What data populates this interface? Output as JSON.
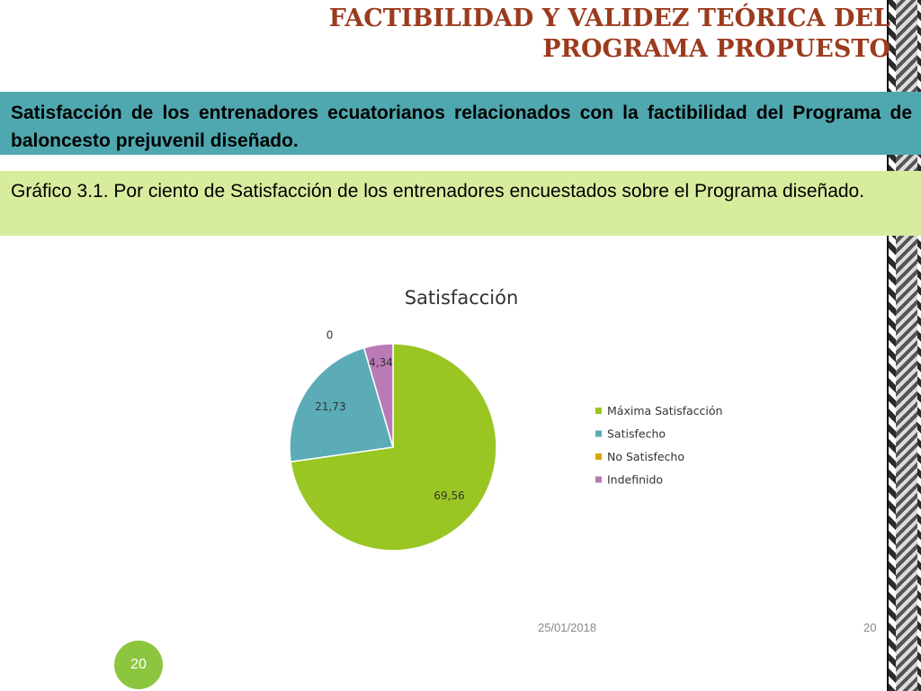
{
  "slide": {
    "title": "FACTIBILIDAD Y VALIDEZ TEÓRICA DEL PROGRAMA PROPUESTO",
    "highlight_text": "Satisfacción de los entrenadores ecuatorianos relacionados con la factibilidad del Programa de baloncesto prejuvenil diseñado.",
    "caption_text": "Gráfico 3.1. Por ciento de Satisfacción de los entrenadores encuestados sobre el Programa diseñado.",
    "footer_date": "25/01/2018",
    "footer_page": "20",
    "page_badge": "20"
  },
  "chart_data": {
    "type": "pie",
    "title": "Satisfacción",
    "legend_position": "right",
    "start_angle_deg": 0,
    "direction": "clockwise",
    "slices": [
      {
        "label": "Máxima Satisfacción",
        "value": 69.56,
        "display": "69,56",
        "color": "#99c623"
      },
      {
        "label": "Satisfecho",
        "value": 21.73,
        "display": "21,73",
        "color": "#5bacb6"
      },
      {
        "label": "No Satisfecho",
        "value": 0,
        "display": "0",
        "color": "#d9a800"
      },
      {
        "label": "Indefinido",
        "value": 4.34,
        "display": "4,34",
        "color": "#b97ab6"
      }
    ]
  }
}
